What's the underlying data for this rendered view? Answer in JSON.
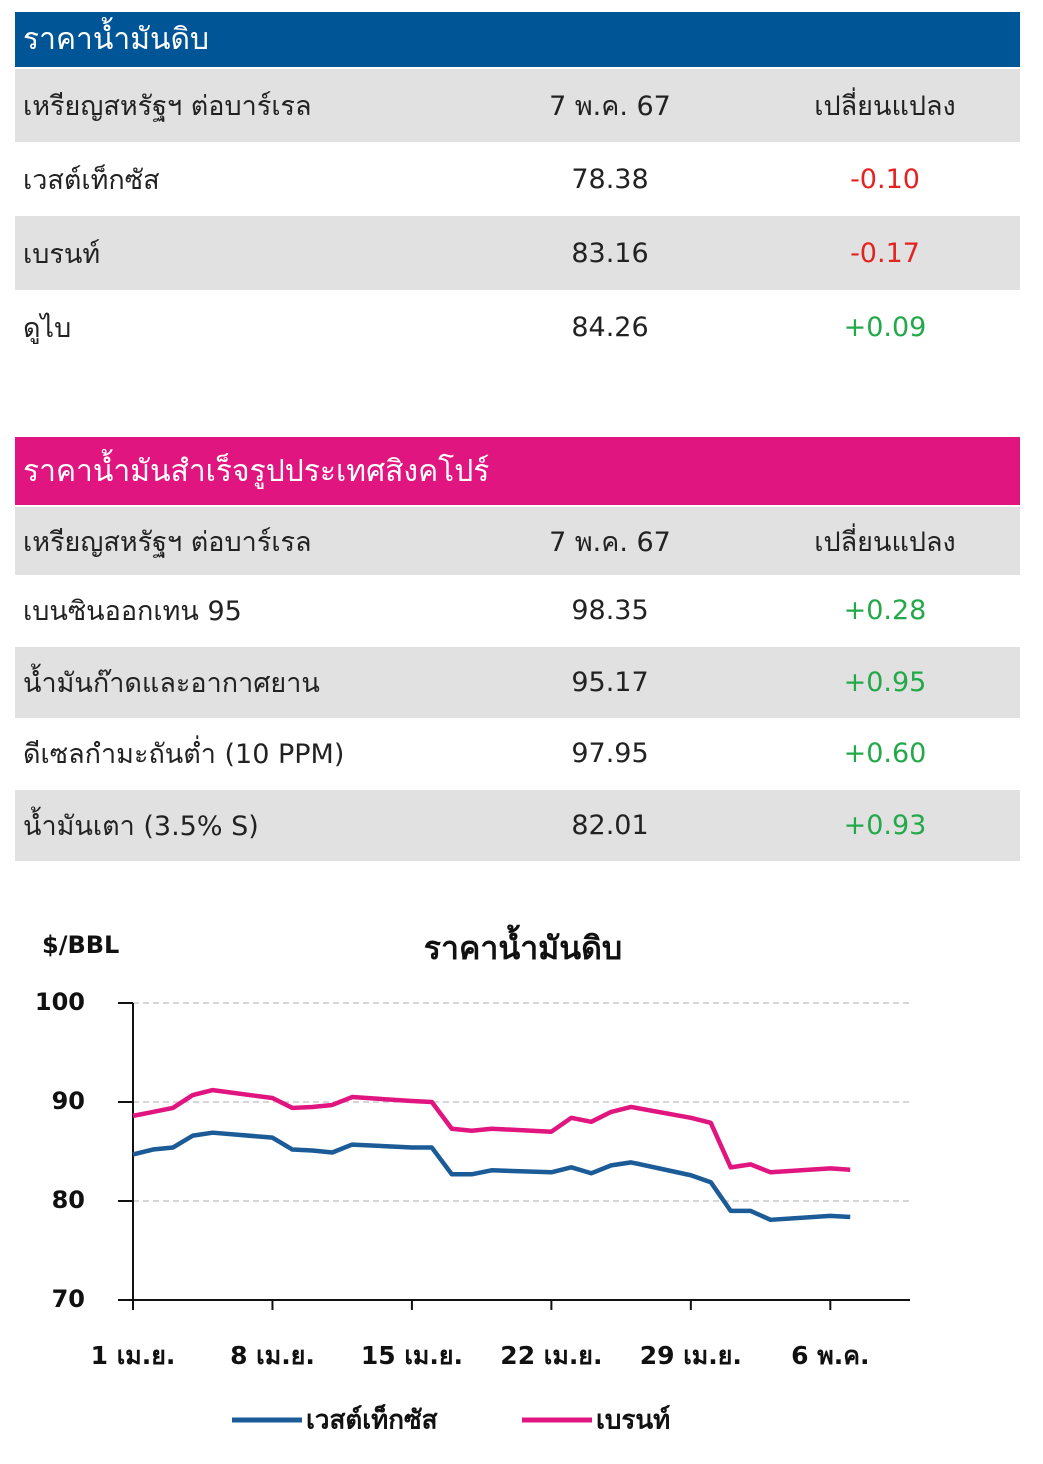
{
  "crude_table": {
    "title": "ราคาน้ำมันดิบ",
    "header": [
      "เหรียญสหรัฐฯ ต่อบาร์เรล",
      "7 พ.ค. 67",
      "เปลี่ยนแปลง"
    ],
    "rows": [
      [
        "เวสต์เท็กซัส",
        "78.38",
        "-0.10"
      ],
      [
        "เบรนท์",
        "83.16",
        "-0.17"
      ],
      [
        "ดูไบ",
        "84.26",
        "+0.09"
      ]
    ]
  },
  "product_table": {
    "title": "ราคาน้ำมันสำเร็จรูปประเทศสิงคโปร์",
    "header": [
      "เหรียญสหรัฐฯ ต่อบาร์เรล",
      "7 พ.ค. 67",
      "เปลี่ยนแปลง"
    ],
    "rows": [
      [
        "เบนซินออกเทน 95",
        "98.35",
        "+0.28"
      ],
      [
        "น้ำมันก๊าดและอากาศยาน",
        "95.17",
        "+0.95"
      ],
      [
        "ดีเซลกำมะถันต่ำ (10 PPM)",
        "97.95",
        "+0.60"
      ],
      [
        "น้ำมันเตา (3.5% S)",
        "82.01",
        "+0.93"
      ]
    ]
  },
  "chart_data": {
    "type": "line",
    "title": "ราคาน้ำมันดิบ",
    "y_label": "$/BBL",
    "x": [
      1,
      2,
      3,
      4,
      5,
      8,
      9,
      10,
      11,
      12,
      15,
      16,
      17,
      18,
      19,
      22,
      23,
      24,
      25,
      26,
      29,
      30,
      31,
      32,
      33,
      36,
      37
    ],
    "xlim": [
      1,
      40
    ],
    "xticks": [
      {
        "value": 1,
        "label": "1 เม.ย."
      },
      {
        "value": 8,
        "label": "8 เม.ย."
      },
      {
        "value": 15,
        "label": "15 เม.ย."
      },
      {
        "value": 22,
        "label": "22 เม.ย."
      },
      {
        "value": 29,
        "label": "29 เม.ย."
      },
      {
        "value": 36,
        "label": "6 พ.ค."
      }
    ],
    "ylim": [
      70,
      100
    ],
    "yticks": [
      70,
      80,
      90,
      100
    ],
    "grid": true,
    "series": [
      {
        "name": "เวสต์เท็กซัส",
        "color": "#1b5b97",
        "values": [
          84.7,
          85.2,
          85.4,
          86.6,
          86.9,
          86.4,
          85.2,
          85.1,
          84.9,
          85.7,
          85.4,
          85.4,
          82.7,
          82.7,
          83.1,
          82.9,
          83.4,
          82.8,
          83.6,
          83.9,
          82.6,
          81.9,
          79.0,
          79.0,
          78.1,
          78.5,
          78.38
        ]
      },
      {
        "name": "เบรนท์",
        "color": "#e0157f",
        "values": [
          88.6,
          89.0,
          89.4,
          90.7,
          91.2,
          90.4,
          89.4,
          89.5,
          89.7,
          90.5,
          90.1,
          90.0,
          87.3,
          87.1,
          87.3,
          87.0,
          88.4,
          88.0,
          89.0,
          89.5,
          88.4,
          87.9,
          83.4,
          83.7,
          82.9,
          83.3,
          83.16
        ]
      }
    ]
  }
}
